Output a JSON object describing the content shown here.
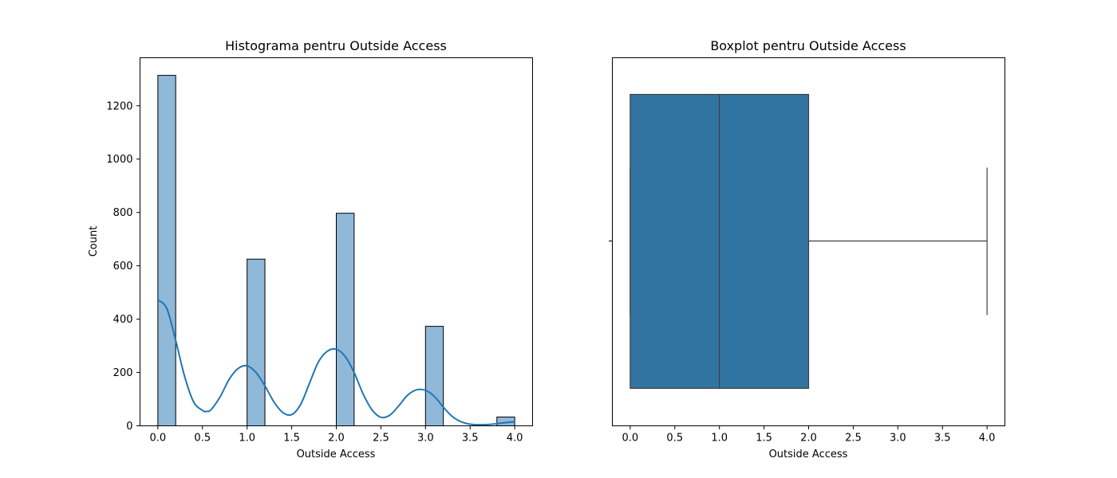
{
  "colors": {
    "hist_bar_fill": "#8fb8d9",
    "kde_line": "#1f77b4",
    "box_fill": "#3274a1",
    "box_line": "#3f3f3f",
    "axes": "#000000"
  },
  "chart_data": [
    {
      "type": "bar",
      "subtype": "histogram-with-kde",
      "title": "Histograma pentru Outside Access",
      "xlabel": "Outside Access",
      "ylabel": "Count",
      "xlim": [
        -0.2,
        4.2
      ],
      "ylim": [
        0,
        1380
      ],
      "xticks": [
        0.0,
        0.5,
        1.0,
        1.5,
        2.0,
        2.5,
        3.0,
        3.5,
        4.0
      ],
      "xtick_labels": [
        "0.0",
        "0.5",
        "1.0",
        "1.5",
        "2.0",
        "2.5",
        "3.0",
        "3.5",
        "4.0"
      ],
      "yticks": [
        0,
        200,
        400,
        600,
        800,
        1000,
        1200
      ],
      "ytick_labels": [
        "0",
        "200",
        "400",
        "600",
        "800",
        "1000",
        "1200"
      ],
      "bin_width": 0.2,
      "bins": [
        {
          "x0": 0.0,
          "x1": 0.2,
          "count": 1314
        },
        {
          "x0": 1.0,
          "x1": 1.2,
          "count": 625
        },
        {
          "x0": 2.0,
          "x1": 2.2,
          "count": 797
        },
        {
          "x0": 3.0,
          "x1": 3.2,
          "count": 373
        },
        {
          "x0": 3.8,
          "x1": 4.0,
          "count": 33
        }
      ],
      "kde": {
        "x": [
          0.0,
          0.1,
          0.2,
          0.3,
          0.4,
          0.5,
          0.55,
          0.6,
          0.7,
          0.8,
          0.9,
          1.0,
          1.1,
          1.2,
          1.3,
          1.4,
          1.5,
          1.6,
          1.7,
          1.8,
          1.9,
          2.0,
          2.1,
          2.2,
          2.3,
          2.4,
          2.5,
          2.6,
          2.7,
          2.8,
          2.9,
          3.0,
          3.1,
          3.2,
          3.3,
          3.4,
          3.5,
          3.6,
          3.7,
          3.8,
          3.9,
          4.0
        ],
        "y": [
          472,
          440,
          320,
          185,
          90,
          58,
          54,
          62,
          110,
          175,
          215,
          225,
          200,
          150,
          90,
          50,
          42,
          80,
          160,
          240,
          280,
          287,
          260,
          200,
          120,
          60,
          32,
          40,
          75,
          115,
          135,
          133,
          110,
          70,
          35,
          15,
          6,
          4,
          5,
          8,
          12,
          15
        ]
      },
      "grid": false,
      "legend": "none"
    },
    {
      "type": "box",
      "title": "Boxplot pentru Outside Access",
      "xlabel": "Outside Access",
      "ylabel": "",
      "xlim": [
        -0.2,
        4.2
      ],
      "xticks": [
        0.0,
        0.5,
        1.0,
        1.5,
        2.0,
        2.5,
        3.0,
        3.5,
        4.0
      ],
      "xtick_labels": [
        "0.0",
        "0.5",
        "1.0",
        "1.5",
        "2.0",
        "2.5",
        "3.0",
        "3.5",
        "4.0"
      ],
      "box": {
        "min": 0.0,
        "q1": 0.0,
        "median": 1.0,
        "q3": 2.0,
        "max": 4.0
      },
      "grid": false,
      "legend": "none"
    }
  ]
}
